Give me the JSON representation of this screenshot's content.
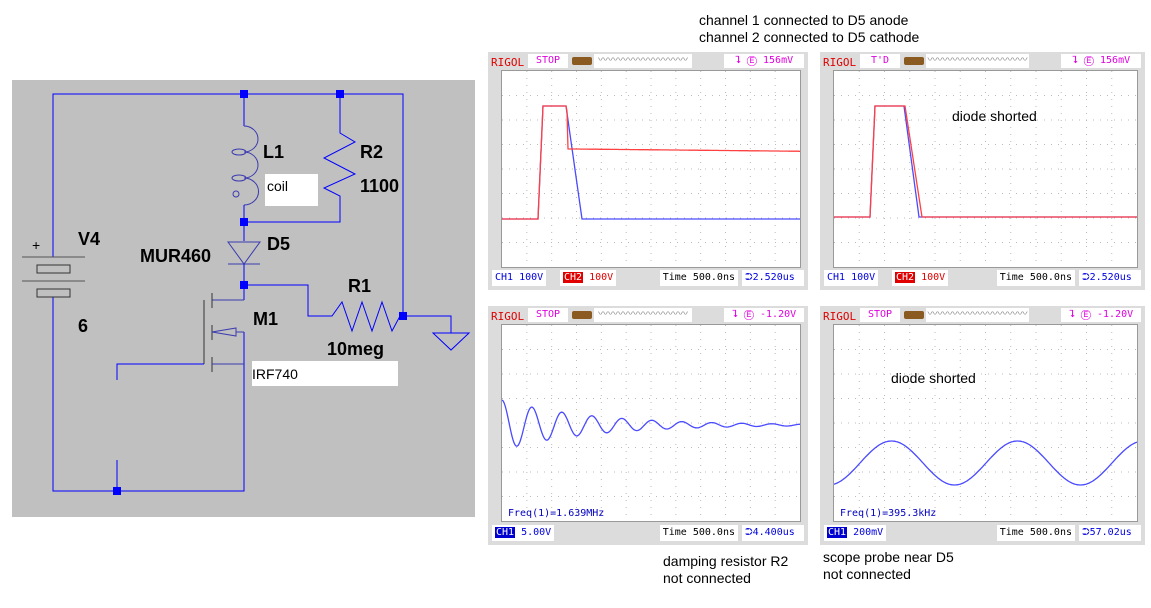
{
  "captions": {
    "top_line1": "channel 1 connected to D5 anode",
    "top_line2": "channel 2 connected to D5 cathode",
    "bottom_left_line1": "damping resistor R2",
    "bottom_left_line2": "not connected",
    "bottom_right_line1": "scope probe near D5",
    "bottom_right_line2": "not connected"
  },
  "schematic": {
    "background": "#c0c0c0",
    "wire_color": "#0000ff",
    "labels": {
      "L1": "L1",
      "L1_value": "coil",
      "R2": "R2",
      "R2_value": "1100",
      "V4": "V4",
      "V4_value": "6",
      "V4_plus": "+",
      "D5": "D5",
      "D5_value": "MUR460",
      "R1": "R1",
      "R1_value": "10meg",
      "M1": "M1",
      "M1_value": "IRF740"
    }
  },
  "scopes": [
    {
      "brand": "RIGOL",
      "status": "STOP",
      "trigger": "156mV",
      "ch1": "CH1",
      "ch1_scale": "100V",
      "ch2": "CH2",
      "ch2_scale": "100V",
      "time": "Time 500.0ns",
      "offset": "2.520us",
      "annotation": "",
      "freq": ""
    },
    {
      "brand": "RIGOL",
      "status": "T'D",
      "trigger": "156mV",
      "ch1": "CH1",
      "ch1_scale": "100V",
      "ch2": "CH2",
      "ch2_scale": "100V",
      "time": "Time 500.0ns",
      "offset": "2.520us",
      "annotation": "diode shorted",
      "freq": ""
    },
    {
      "brand": "RIGOL",
      "status": "STOP",
      "trigger": "-1.20V",
      "ch1": "CH1",
      "ch1_scale": "5.00V",
      "ch2": "",
      "ch2_scale": "",
      "time": "Time 500.0ns",
      "offset": "4.400us",
      "annotation": "",
      "freq": "Freq(1)=1.639MHz"
    },
    {
      "brand": "RIGOL",
      "status": "STOP",
      "trigger": "-1.20V",
      "ch1": "CH1",
      "ch1_scale": "200mV",
      "ch2": "",
      "ch2_scale": "",
      "time": "Time 500.0ns",
      "offset": "57.02us",
      "annotation": "diode shorted",
      "freq": "Freq(1)=395.3kHz"
    }
  ],
  "colors": {
    "ch1": "#4a4aff",
    "ch2": "#ff4040",
    "rigol": "#e00000",
    "status": "#e000e0"
  },
  "icons": {
    "battery": "battery-icon",
    "trigger_edge": "trigger-edge-icon",
    "trigger_pos": "trigger-position-icon"
  }
}
